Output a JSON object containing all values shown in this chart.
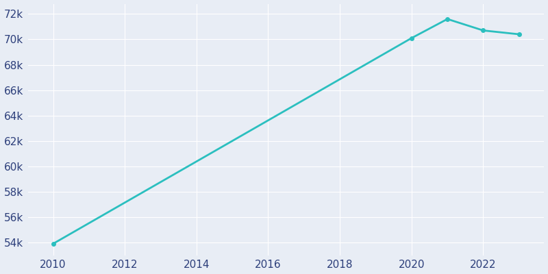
{
  "years": [
    2010,
    2020,
    2021,
    2022,
    2023
  ],
  "population": [
    53900,
    70100,
    71600,
    70700,
    70400
  ],
  "line_color": "#2bbfbf",
  "background_color": "#e8edf5",
  "text_color": "#2c3e7a",
  "ytick_labels": [
    "54k",
    "56k",
    "58k",
    "60k",
    "62k",
    "64k",
    "66k",
    "68k",
    "70k",
    "72k"
  ],
  "ytick_values": [
    54000,
    56000,
    58000,
    60000,
    62000,
    64000,
    66000,
    68000,
    70000,
    72000
  ],
  "xtick_labels": [
    "2010",
    "2012",
    "2014",
    "2016",
    "2018",
    "2020",
    "2022"
  ],
  "xtick_values": [
    2010,
    2012,
    2014,
    2016,
    2018,
    2020,
    2022
  ],
  "ylim": [
    53000,
    72800
  ],
  "xlim": [
    2009.3,
    2023.7
  ],
  "figsize": [
    8.0,
    4.0
  ],
  "dpi": 100
}
